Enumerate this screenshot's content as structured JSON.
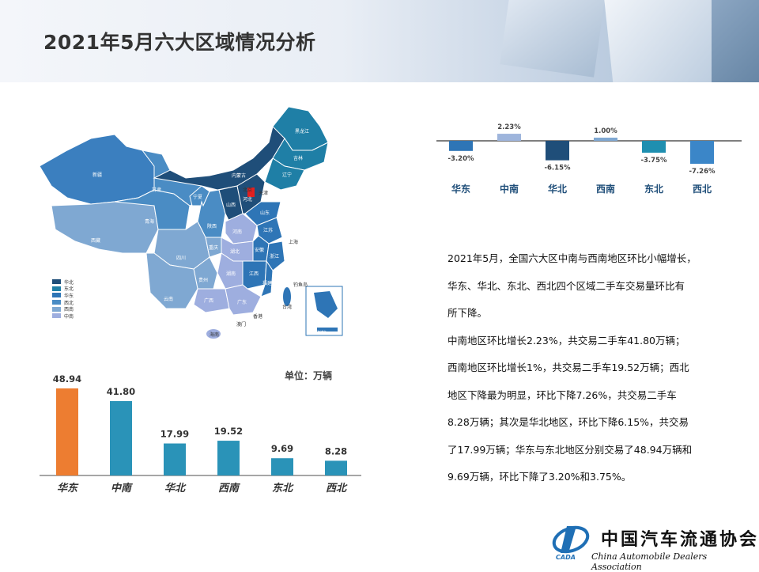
{
  "header": {
    "title": "2021年5月六大区域情况分析"
  },
  "map": {
    "legend": [
      {
        "label": "华北",
        "color": "#1f4e79"
      },
      {
        "label": "东北",
        "color": "#1f7fa6"
      },
      {
        "label": "华东",
        "color": "#2e75b6"
      },
      {
        "label": "西北",
        "color": "#4a8cc4"
      },
      {
        "label": "西南",
        "color": "#7fa8d2"
      },
      {
        "label": "中南",
        "color": "#9eaedf"
      }
    ],
    "labels": [
      "黑龙江",
      "吉林",
      "辽宁",
      "内蒙古",
      "新疆",
      "甘肃",
      "宁夏",
      "青海",
      "西藏",
      "四川",
      "云南",
      "贵州",
      "重庆",
      "陕西",
      "山西",
      "河北",
      "北京",
      "天津",
      "山东",
      "河南",
      "湖北",
      "湖南",
      "江西",
      "安徽",
      "江苏",
      "上海",
      "浙江",
      "福建",
      "广东",
      "广西",
      "海南",
      "台湾",
      "香港",
      "澳门",
      "钓鱼岛",
      "南海诸岛"
    ]
  },
  "chart_data": [
    {
      "type": "bar",
      "title": "",
      "categories": [
        "华东",
        "中南",
        "华北",
        "西南",
        "东北",
        "西北"
      ],
      "series": [
        {
          "name": "",
          "values": [
            -3.2,
            2.23,
            -6.15,
            1.0,
            -3.75,
            -7.26
          ]
        }
      ],
      "value_labels": [
        "-3.20%",
        "2.23%",
        "-6.15%",
        "1.00%",
        "-3.75%",
        "-7.26%"
      ],
      "colors": [
        "#2e75b6",
        "#9eb5dc",
        "#1f4e79",
        "#7fa8d2",
        "#1f8fb0",
        "#3b86c8"
      ],
      "xlabel": "",
      "ylabel": ""
    },
    {
      "type": "bar",
      "title": "",
      "unit_label": "单位：万辆",
      "categories": [
        "华东",
        "中南",
        "华北",
        "西南",
        "东北",
        "西北"
      ],
      "series": [
        {
          "name": "",
          "values": [
            48.94,
            41.8,
            17.99,
            19.52,
            9.69,
            8.28
          ]
        }
      ],
      "value_labels": [
        "48.94",
        "41.80",
        "17.99",
        "19.52",
        "9.69",
        "8.28"
      ],
      "colors": [
        "#ed7d31",
        "#2a93b8",
        "#2a93b8",
        "#2a93b8",
        "#2a93b8",
        "#2a93b8"
      ],
      "xlabel": "",
      "ylabel": ""
    }
  ],
  "description": [
    "2021年5月，全国六大区中南与西南地区环比小幅增长，",
    "华东、华北、东北、西北四个区域二手车交易量环比有",
    "所下降。",
    "中南地区环比增长2.23%，共交易二手车41.80万辆；",
    "西南地区环比增长1%，共交易二手车19.52万辆；西北",
    "地区下降最为明显，环比下降7.26%，共交易二手车",
    "8.28万辆；其次是华北地区，环比下降6.15%，共交易",
    "了17.99万辆；华东与东北地区分别交易了48.94万辆和",
    "9.69万辆，环比下降了3.20%和3.75%。"
  ],
  "logo": {
    "name_cn": "中国汽车流通协会",
    "name_en": "China Automobile Dealers Association",
    "abbr": "CADA"
  }
}
